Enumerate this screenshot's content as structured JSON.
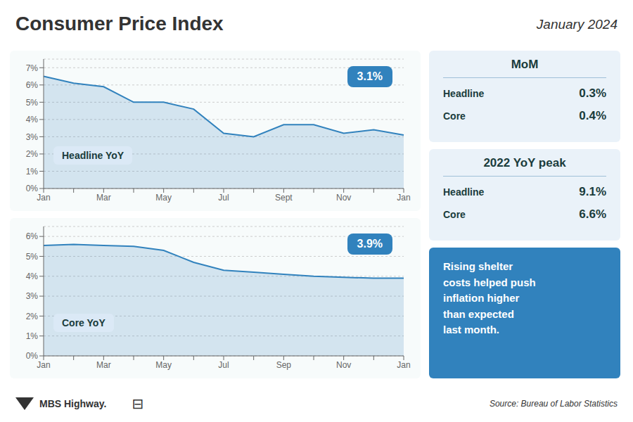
{
  "title": "Consumer Price Index",
  "subtitle": "January 2024",
  "chart_data": [
    {
      "type": "area",
      "categories": [
        "Jan",
        null,
        "Mar",
        null,
        "May",
        null,
        "Jul",
        null,
        "Sept",
        null,
        "Nov",
        null,
        "Jan"
      ],
      "values": [
        6.5,
        6.1,
        5.9,
        5.0,
        5.0,
        4.6,
        3.2,
        3.0,
        3.7,
        3.7,
        3.2,
        3.4,
        3.1
      ],
      "ylim": [
        0,
        7.5
      ],
      "yticks": [
        {
          "value": 0,
          "label": "0%"
        },
        {
          "value": 1,
          "label": "1%"
        },
        {
          "value": 2,
          "label": "2%"
        },
        {
          "value": 3,
          "label": "3%"
        },
        {
          "value": 4,
          "label": "4%"
        },
        {
          "value": 5,
          "label": "5%"
        },
        {
          "value": 6,
          "label": "6%"
        },
        {
          "value": 7,
          "label": "7%"
        }
      ],
      "grid": true,
      "annotations": [
        "Headline YoY",
        "3.1%"
      ]
    },
    {
      "type": "area",
      "categories": [
        "Jan",
        null,
        "Mar",
        null,
        "May",
        null,
        "Jul",
        null,
        "Sep",
        null,
        "Nov",
        null,
        "Jan"
      ],
      "values": [
        5.55,
        5.6,
        5.55,
        5.5,
        5.3,
        4.7,
        4.3,
        4.2,
        4.1,
        4.0,
        3.95,
        3.9,
        3.9
      ],
      "ylim": [
        0,
        6.5
      ],
      "yticks": [
        {
          "value": 0,
          "label": "0%"
        },
        {
          "value": 1,
          "label": "1%"
        },
        {
          "value": 2,
          "label": "2%"
        },
        {
          "value": 3,
          "label": "3%"
        },
        {
          "value": 4,
          "label": "4%"
        },
        {
          "value": 5,
          "label": "5%"
        },
        {
          "value": 6,
          "label": "6%"
        }
      ],
      "grid": true,
      "annotations": [
        "Core YoY",
        "3.9%"
      ]
    }
  ],
  "tables": [
    {
      "title": "MoM",
      "rows": [
        [
          "Headline",
          "0.3%"
        ],
        [
          "Core",
          "0.4%"
        ]
      ]
    },
    {
      "title": "2022 YoY peak",
      "rows": [
        [
          "Headline",
          "9.1%"
        ],
        [
          "Core",
          "6.6%"
        ]
      ]
    }
  ],
  "quote": "Rising shelter\ncosts helped push\ninflation higher\nthan expected\nlast month.",
  "footer": [
    "MBS Highway.",
    "⊟",
    "Source: Bureau of Labor Statistics"
  ]
}
